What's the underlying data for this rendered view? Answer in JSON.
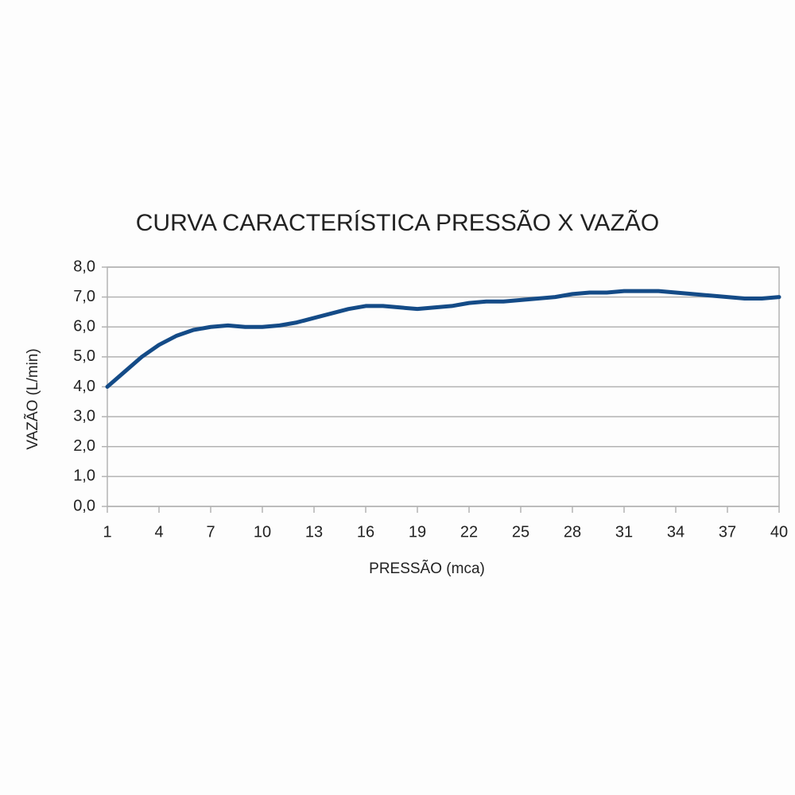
{
  "chart_data": {
    "type": "line",
    "title": "CURVA CARACTERÍSTICA PRESSÃO X VAZÃO",
    "x_label": "PRESSÃO (mca)",
    "y_label": "VAZÃO (L/min)",
    "x": [
      1,
      2,
      3,
      4,
      5,
      6,
      7,
      8,
      9,
      10,
      11,
      12,
      13,
      14,
      15,
      16,
      17,
      18,
      19,
      20,
      21,
      22,
      23,
      24,
      25,
      26,
      27,
      28,
      29,
      30,
      31,
      32,
      33,
      34,
      35,
      36,
      37,
      38,
      39,
      40
    ],
    "series": [
      {
        "color": "#144b87",
        "values": [
          4.0,
          4.5,
          5.0,
          5.4,
          5.7,
          5.9,
          6.0,
          6.05,
          6.0,
          6.0,
          6.05,
          6.15,
          6.3,
          6.45,
          6.6,
          6.7,
          6.7,
          6.65,
          6.6,
          6.65,
          6.7,
          6.8,
          6.85,
          6.85,
          6.9,
          6.95,
          7.0,
          7.1,
          7.15,
          7.15,
          7.2,
          7.2,
          7.2,
          7.15,
          7.1,
          7.05,
          7.0,
          6.95,
          6.95,
          7.0
        ]
      }
    ],
    "xlim": [
      1,
      40
    ],
    "xticks": [
      1,
      4,
      7,
      10,
      13,
      16,
      19,
      22,
      25,
      28,
      31,
      34,
      37,
      40
    ],
    "ylim": [
      0,
      8
    ],
    "yticks": [
      {
        "value": 0,
        "label": "0,0"
      },
      {
        "value": 1,
        "label": "1,0"
      },
      {
        "value": 2,
        "label": "2,0"
      },
      {
        "value": 3,
        "label": "3,0"
      },
      {
        "value": 4,
        "label": "4,0"
      },
      {
        "value": 5,
        "label": "5,0"
      },
      {
        "value": 6,
        "label": "6,0"
      },
      {
        "value": 7,
        "label": "7,0"
      },
      {
        "value": 8,
        "label": "8,0"
      }
    ],
    "grid": true
  }
}
